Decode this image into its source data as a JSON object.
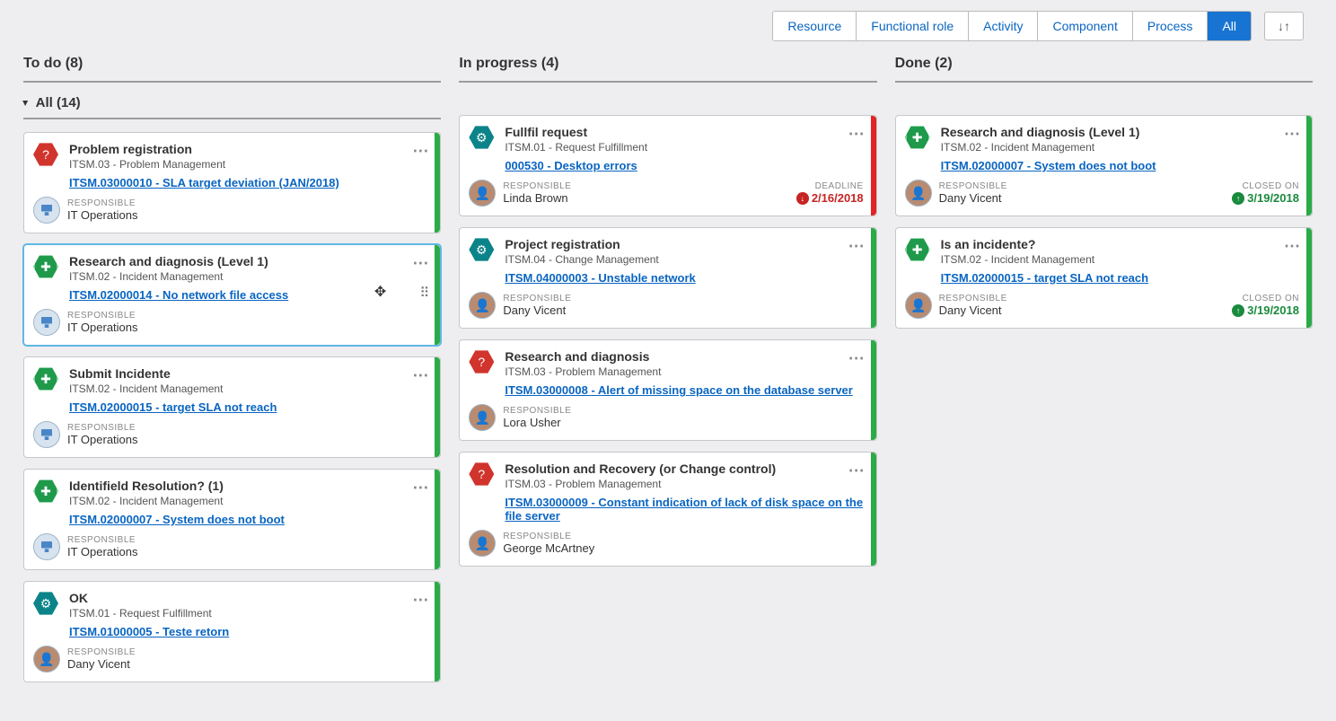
{
  "filters": {
    "tabs": [
      "Resource",
      "Functional role",
      "Activity",
      "Component",
      "Process",
      "All"
    ],
    "active_index": 5,
    "sort_icon": "↓↑"
  },
  "columns": [
    {
      "title": "To do (8)"
    },
    {
      "title": "In progress (4)"
    },
    {
      "title": "Done (2)"
    }
  ],
  "group_label": "All (14)",
  "colors": {
    "stripe_green": "#2bab48",
    "stripe_red": "#e22323"
  },
  "labels": {
    "responsible": "RESPONSIBLE",
    "deadline": "DEADLINE",
    "closed_on": "CLOSED ON"
  },
  "cards": {
    "todo": [
      {
        "icon": "red",
        "glyph": "?",
        "title": "Problem registration",
        "sub": "ITSM.03 - Problem Management",
        "link": "ITSM.03000010 - SLA target deviation (JAN/2018)",
        "responsible": "IT Operations",
        "avatar": "ops",
        "stripe": "#2bab48",
        "selected": false
      },
      {
        "icon": "green",
        "glyph": "✚",
        "title": "Research and diagnosis (Level 1)",
        "sub": "ITSM.02 - Incident Management",
        "link": "ITSM.02000014 - No network file access",
        "responsible": "IT Operations",
        "avatar": "ops",
        "stripe": "#2bab48",
        "selected": true,
        "drag": true
      },
      {
        "icon": "green",
        "glyph": "✚",
        "title": "Submit Incidente",
        "sub": "ITSM.02 - Incident Management",
        "link": "ITSM.02000015 - target SLA not reach",
        "responsible": "IT Operations",
        "avatar": "ops",
        "stripe": "#2bab48"
      },
      {
        "icon": "green",
        "glyph": "✚",
        "title": "Identifield Resolution? (1)",
        "sub": "ITSM.02 - Incident Management",
        "link": "ITSM.02000007 - System does not boot",
        "responsible": "IT Operations",
        "avatar": "ops",
        "stripe": "#2bab48"
      },
      {
        "icon": "teal",
        "glyph": "⚙",
        "title": "OK",
        "sub": "ITSM.01 - Request Fulfillment",
        "link": "ITSM.01000005 - Teste retorn",
        "responsible": "Dany Vicent",
        "avatar": "photo",
        "stripe": "#2bab48"
      }
    ],
    "inprogress": [
      {
        "icon": "teal",
        "glyph": "⚙",
        "title": "Fullfil request",
        "sub": "ITSM.01 - Request Fulfillment",
        "link": "000530 - Desktop errors",
        "responsible": "Linda Brown",
        "avatar": "photo",
        "stripe": "#e22323",
        "deadline": {
          "label": "DEADLINE",
          "value": "2/16/2018",
          "color": "red",
          "arrow": "↓"
        }
      },
      {
        "icon": "teal",
        "glyph": "⚙",
        "title": "Project registration",
        "sub": "ITSM.04 - Change Management",
        "link": "ITSM.04000003 - Unstable network",
        "responsible": "Dany Vicent",
        "avatar": "photo",
        "stripe": "#2bab48"
      },
      {
        "icon": "red",
        "glyph": "?",
        "title": "Research and diagnosis",
        "sub": "ITSM.03 - Problem Management",
        "link": "ITSM.03000008 - Alert of missing space on the database server",
        "responsible": "Lora Usher",
        "avatar": "photo",
        "stripe": "#2bab48"
      },
      {
        "icon": "red",
        "glyph": "?",
        "title": "Resolution and Recovery (or Change control)",
        "sub": "ITSM.03 - Problem Management",
        "link": "ITSM.03000009 - Constant indication of lack of disk space on the file server",
        "responsible": "George McArtney",
        "avatar": "photo",
        "stripe": "#2bab48"
      }
    ],
    "done": [
      {
        "icon": "green",
        "glyph": "✚",
        "title": "Research and diagnosis (Level 1)",
        "sub": "ITSM.02 - Incident Management",
        "link": "ITSM.02000007 - System does not boot",
        "responsible": "Dany Vicent",
        "avatar": "photo",
        "stripe": "#2bab48",
        "deadline": {
          "label": "CLOSED ON",
          "value": "3/19/2018",
          "color": "green",
          "arrow": "↑"
        }
      },
      {
        "icon": "green",
        "glyph": "✚",
        "title": "Is an incidente?",
        "sub": "ITSM.02 - Incident Management",
        "link": "ITSM.02000015 - target SLA not reach",
        "responsible": "Dany Vicent",
        "avatar": "photo",
        "stripe": "#2bab48",
        "deadline": {
          "label": "CLOSED ON",
          "value": "3/19/2018",
          "color": "green",
          "arrow": "↑"
        }
      }
    ]
  }
}
